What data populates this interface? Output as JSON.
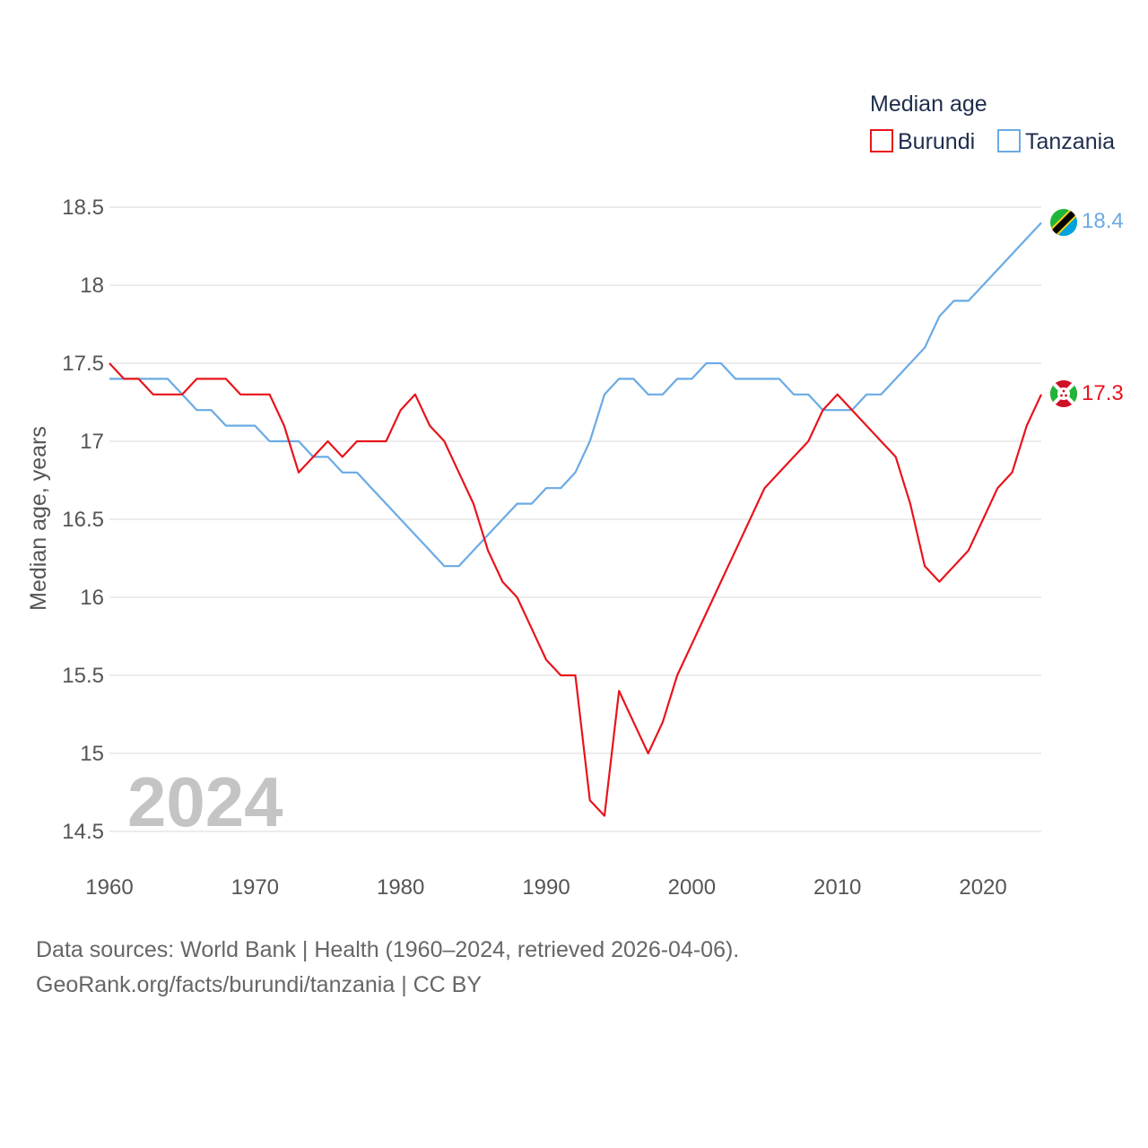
{
  "chart_data": {
    "type": "line",
    "legend_title": "Median age",
    "ylabel": "Median age, years",
    "xlabel": "",
    "ylim": [
      14.5,
      18.5
    ],
    "xlim": [
      1960,
      2024
    ],
    "yticks": [
      "18.5",
      "18",
      "17.5",
      "17",
      "16.5",
      "16",
      "15.5",
      "15",
      "14.5"
    ],
    "xticks": [
      "1960",
      "1970",
      "1980",
      "1990",
      "2000",
      "2010",
      "2020"
    ],
    "watermark": "2024",
    "x": [
      1960,
      1961,
      1962,
      1963,
      1964,
      1965,
      1966,
      1967,
      1968,
      1969,
      1970,
      1971,
      1972,
      1973,
      1974,
      1975,
      1976,
      1977,
      1978,
      1979,
      1980,
      1981,
      1982,
      1983,
      1984,
      1985,
      1986,
      1987,
      1988,
      1989,
      1990,
      1991,
      1992,
      1993,
      1994,
      1995,
      1996,
      1997,
      1998,
      1999,
      2000,
      2001,
      2002,
      2003,
      2004,
      2005,
      2006,
      2007,
      2008,
      2009,
      2010,
      2011,
      2012,
      2013,
      2014,
      2015,
      2016,
      2017,
      2018,
      2019,
      2020,
      2021,
      2022,
      2023,
      2024
    ],
    "series": [
      {
        "name": "Burundi",
        "color": "#e8141c",
        "end_label": "17.3",
        "values": [
          17.5,
          17.4,
          17.4,
          17.3,
          17.3,
          17.3,
          17.4,
          17.4,
          17.4,
          17.3,
          17.3,
          17.3,
          17.1,
          16.8,
          16.9,
          17.0,
          16.9,
          17.0,
          17.0,
          17.0,
          17.2,
          17.3,
          17.1,
          17.0,
          16.8,
          16.6,
          16.3,
          16.1,
          16.0,
          15.8,
          15.6,
          15.5,
          15.5,
          14.7,
          14.6,
          15.4,
          15.2,
          15.0,
          15.2,
          15.5,
          15.7,
          15.9,
          16.1,
          16.3,
          16.5,
          16.7,
          16.8,
          16.9,
          17.0,
          17.2,
          17.3,
          17.2,
          17.1,
          17.0,
          16.9,
          16.6,
          16.2,
          16.1,
          16.2,
          16.3,
          16.5,
          16.7,
          16.8,
          17.1,
          17.3
        ]
      },
      {
        "name": "Tanzania",
        "color": "#6aaae4",
        "end_label": "18.4",
        "values": [
          17.4,
          17.4,
          17.4,
          17.4,
          17.4,
          17.3,
          17.2,
          17.2,
          17.1,
          17.1,
          17.1,
          17.0,
          17.0,
          17.0,
          16.9,
          16.9,
          16.8,
          16.8,
          16.7,
          16.6,
          16.5,
          16.4,
          16.3,
          16.2,
          16.2,
          16.3,
          16.4,
          16.5,
          16.6,
          16.6,
          16.7,
          16.7,
          16.8,
          17.0,
          17.3,
          17.4,
          17.4,
          17.3,
          17.3,
          17.4,
          17.4,
          17.5,
          17.5,
          17.4,
          17.4,
          17.4,
          17.4,
          17.3,
          17.3,
          17.2,
          17.2,
          17.2,
          17.3,
          17.3,
          17.4,
          17.5,
          17.6,
          17.8,
          17.9,
          17.9,
          18.0,
          18.1,
          18.2,
          18.3,
          18.4
        ]
      }
    ]
  },
  "footer": {
    "line1": "Data sources: World Bank | Health (1960–2024, retrieved 2026-04-06).",
    "line2": "GeoRank.org/facts/burundi/tanzania | CC BY"
  }
}
